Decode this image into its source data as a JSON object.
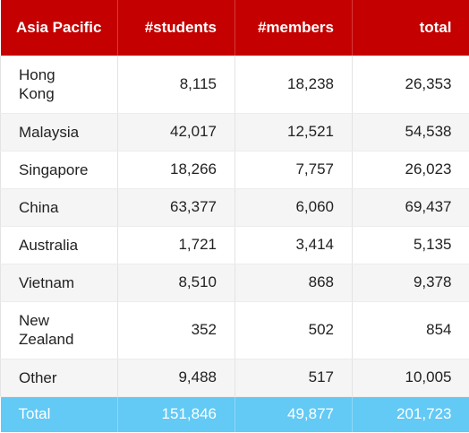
{
  "header": {
    "region_label": "Asia Pacific",
    "students_label": "#students",
    "members_label": "#members",
    "total_label": "total"
  },
  "rows": [
    {
      "name": "Hong Kong",
      "students": "8,115",
      "members": "18,238",
      "total": "26,353"
    },
    {
      "name": "Malaysia",
      "students": "42,017",
      "members": "12,521",
      "total": "54,538"
    },
    {
      "name": "Singapore",
      "students": "18,266",
      "members": "7,757",
      "total": "26,023"
    },
    {
      "name": "China",
      "students": "63,377",
      "members": "6,060",
      "total": "69,437"
    },
    {
      "name": "Australia",
      "students": "1,721",
      "members": "3,414",
      "total": "5,135"
    },
    {
      "name": "Vietnam",
      "students": "8,510",
      "members": "868",
      "total": "9,378"
    },
    {
      "name": "New Zealand",
      "students": "352",
      "members": "502",
      "total": "854"
    },
    {
      "name": "Other",
      "students": "9,488",
      "members": "517",
      "total": "10,005"
    }
  ],
  "footer": {
    "name": "Total",
    "students": "151,846",
    "members": "49,877",
    "total": "201,723"
  },
  "colors": {
    "header_bg": "#c40000",
    "footer_bg": "#63c9f5",
    "stripe_bg": "#f5f5f5"
  }
}
